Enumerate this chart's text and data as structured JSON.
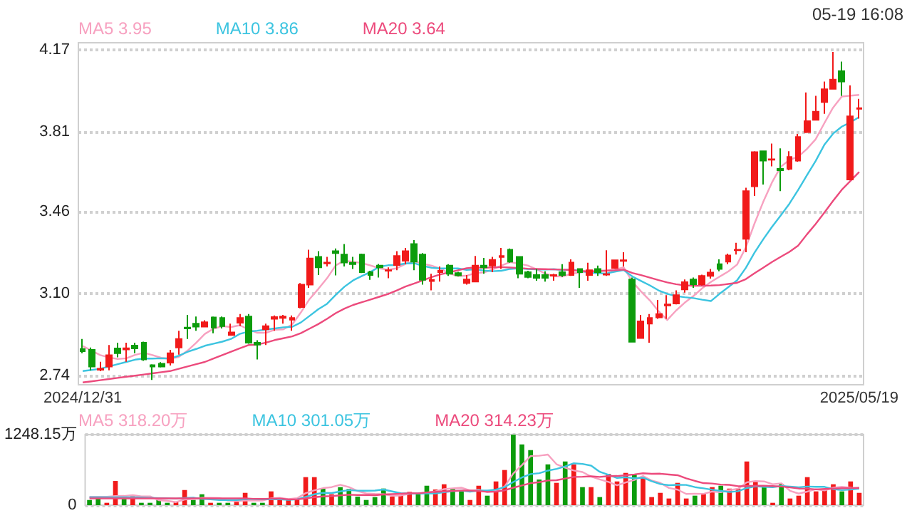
{
  "chart_data": [
    {
      "type": "candlestick",
      "annotations": [
        "05-19 16:08"
      ],
      "legend": "top left",
      "grid": "y",
      "ylim": [
        2.7,
        4.2
      ],
      "yticks": [
        4.17,
        3.81,
        3.46,
        {
          "value": 3.1,
          "label": "3.10"
        },
        2.74
      ],
      "categories": [
        "2024/12/31",
        null,
        null,
        null,
        null,
        null,
        null,
        null,
        null,
        null,
        null,
        null,
        null,
        null,
        null,
        null,
        null,
        null,
        null,
        null,
        null,
        null,
        null,
        null,
        null,
        null,
        null,
        null,
        null,
        null,
        null,
        null,
        null,
        null,
        null,
        null,
        null,
        null,
        null,
        null,
        null,
        null,
        null,
        null,
        null,
        null,
        null,
        null,
        null,
        null,
        null,
        null,
        null,
        null,
        null,
        null,
        null,
        null,
        null,
        null,
        null,
        null,
        null,
        null,
        null,
        null,
        null,
        null,
        null,
        null,
        null,
        null,
        null,
        null,
        null,
        null,
        null,
        null,
        null,
        null,
        null,
        null,
        null,
        null,
        null,
        null,
        null,
        null,
        null,
        "2025/05/19"
      ],
      "ohlc": [
        [
          2.857,
          2.901,
          2.838,
          2.847
        ],
        [
          2.853,
          2.863,
          2.763,
          2.78
        ],
        [
          2.766,
          2.801,
          2.759,
          2.77
        ],
        [
          2.78,
          2.874,
          2.763,
          2.83
        ],
        [
          2.859,
          2.884,
          2.82,
          2.838
        ],
        [
          2.855,
          2.884,
          2.801,
          2.86
        ],
        [
          2.872,
          2.884,
          2.838,
          2.859
        ],
        [
          2.884,
          2.889,
          2.805,
          2.811
        ],
        [
          2.786,
          2.79,
          2.721,
          2.78
        ],
        [
          2.792,
          2.799,
          2.776,
          2.78
        ],
        [
          2.797,
          2.853,
          2.784,
          2.838
        ],
        [
          2.863,
          2.937,
          2.832,
          2.901
        ],
        [
          2.951,
          3.006,
          2.901,
          2.947
        ],
        [
          2.968,
          2.999,
          2.937,
          2.955
        ],
        [
          2.955,
          2.983,
          2.953,
          2.974
        ],
        [
          2.995,
          2.999,
          2.926,
          2.951
        ],
        [
          2.993,
          2.999,
          2.947,
          2.957
        ],
        [
          2.918,
          2.968,
          2.916,
          2.93
        ],
        [
          2.972,
          3.01,
          2.957,
          2.993
        ],
        [
          2.999,
          3.01,
          2.88,
          2.884
        ],
        [
          2.884,
          2.895,
          2.811,
          2.876
        ],
        [
          2.943,
          2.968,
          2.874,
          2.957
        ],
        [
          2.989,
          3.004,
          2.937,
          2.997
        ],
        [
          2.993,
          3.006,
          2.968,
          2.999
        ],
        [
          2.985,
          3.004,
          2.937,
          2.993
        ],
        [
          3.041,
          3.146,
          3.035,
          3.139
        ],
        [
          3.139,
          3.292,
          3.125,
          3.254
        ],
        [
          3.261,
          3.286,
          3.181,
          3.215
        ],
        [
          3.232,
          3.261,
          3.219,
          3.236
        ],
        [
          3.286,
          3.298,
          3.18,
          3.277
        ],
        [
          3.271,
          3.317,
          3.219,
          3.236
        ],
        [
          3.235,
          3.261,
          3.208,
          3.229
        ],
        [
          3.271,
          3.275,
          3.19,
          3.194
        ],
        [
          3.194,
          3.2,
          3.16,
          3.181
        ],
        [
          3.223,
          3.23,
          3.17,
          3.215
        ],
        [
          3.2,
          3.215,
          3.167,
          3.202
        ],
        [
          3.225,
          3.286,
          3.202,
          3.265
        ],
        [
          3.244,
          3.3,
          3.229,
          3.286
        ],
        [
          3.317,
          3.334,
          3.202,
          3.24
        ],
        [
          3.271,
          3.277,
          3.139,
          3.16
        ],
        [
          3.155,
          3.187,
          3.114,
          3.16
        ],
        [
          3.194,
          3.219,
          3.152,
          3.2
        ],
        [
          3.223,
          3.229,
          3.177,
          3.187
        ],
        [
          3.19,
          3.195,
          3.175,
          3.18
        ],
        [
          3.146,
          3.181,
          3.139,
          3.162
        ],
        [
          3.152,
          3.265,
          3.152,
          3.223
        ],
        [
          3.223,
          3.256,
          3.187,
          3.215
        ],
        [
          3.223,
          3.261,
          3.194,
          3.248
        ],
        [
          3.26,
          3.3,
          3.208,
          3.265
        ],
        [
          3.292,
          3.298,
          3.235,
          3.24
        ],
        [
          3.261,
          3.261,
          3.167,
          3.187
        ],
        [
          3.194,
          3.2,
          3.167,
          3.173
        ],
        [
          3.181,
          3.208,
          3.156,
          3.169
        ],
        [
          3.181,
          3.198,
          3.152,
          3.169
        ],
        [
          3.178,
          3.187,
          3.156,
          3.181
        ],
        [
          3.194,
          3.229,
          3.173,
          3.181
        ],
        [
          3.181,
          3.25,
          3.177,
          3.236
        ],
        [
          3.208,
          3.208,
          3.125,
          3.194
        ],
        [
          3.181,
          3.235,
          3.156,
          3.202
        ],
        [
          3.208,
          3.223,
          3.177,
          3.194
        ],
        [
          3.183,
          3.29,
          3.177,
          3.185
        ],
        [
          3.212,
          3.246,
          3.208,
          3.246
        ],
        [
          3.243,
          3.281,
          3.219,
          3.246
        ],
        [
          3.162,
          3.17,
          2.888,
          2.888
        ],
        [
          2.905,
          3.006,
          2.905,
          2.978
        ],
        [
          2.968,
          3.01,
          2.884,
          2.993
        ],
        [
          2.995,
          3.072,
          2.989,
          3.01
        ],
        [
          3.048,
          3.093,
          2.989,
          3.052
        ],
        [
          3.056,
          3.114,
          3.052,
          3.093
        ],
        [
          3.118,
          3.162,
          3.104,
          3.15
        ],
        [
          3.162,
          3.17,
          3.125,
          3.141
        ],
        [
          3.141,
          3.183,
          3.135,
          3.177
        ],
        [
          3.177,
          3.208,
          3.166,
          3.192
        ],
        [
          3.229,
          3.25,
          3.198,
          3.208
        ],
        [
          3.24,
          3.275,
          3.229,
          3.267
        ],
        [
          3.29,
          3.323,
          3.271,
          3.292
        ],
        [
          3.34,
          3.564,
          3.281,
          3.549
        ],
        [
          3.57,
          3.724,
          3.528,
          3.72
        ],
        [
          3.724,
          3.724,
          3.578,
          3.683
        ],
        [
          3.687,
          3.758,
          3.658,
          3.689
        ],
        [
          3.647,
          3.737,
          3.549,
          3.641
        ],
        [
          3.647,
          3.724,
          3.641,
          3.699
        ],
        [
          3.683,
          3.8,
          3.678,
          3.787
        ],
        [
          3.808,
          3.982,
          3.804,
          3.856
        ],
        [
          3.862,
          3.967,
          3.862,
          3.898
        ],
        [
          3.94,
          4.03,
          3.888,
          3.996
        ],
        [
          3.998,
          4.159,
          3.998,
          4.038
        ],
        [
          4.076,
          4.117,
          3.967,
          4.03
        ],
        [
          3.6,
          4.013,
          3.6,
          3.877
        ],
        [
          3.91,
          3.954,
          3.867,
          3.913
        ]
      ],
      "colors": [
        "#0c9c0c",
        "#0c9c0c",
        "#f11a1a",
        "#f11a1a",
        "#0c9c0c",
        "#f11a1a",
        "#0c9c0c",
        "#0c9c0c",
        "#0c9c0c",
        "#0c9c0c",
        "#f11a1a",
        "#f11a1a",
        "#0c9c0c",
        "#0c9c0c",
        "#f11a1a",
        "#0c9c0c",
        "#0c9c0c",
        "#f11a1a",
        "#f11a1a",
        "#0c9c0c",
        "#0c9c0c",
        "#f11a1a",
        "#f11a1a",
        "#f11a1a",
        "#f11a1a",
        "#f11a1a",
        "#f11a1a",
        "#0c9c0c",
        "#f11a1a",
        "#0c9c0c",
        "#0c9c0c",
        "#0c9c0c",
        "#0c9c0c",
        "#0c9c0c",
        "#0c9c0c",
        "#f11a1a",
        "#f11a1a",
        "#f11a1a",
        "#0c9c0c",
        "#0c9c0c",
        "#f11a1a",
        "#f11a1a",
        "#0c9c0c",
        "#0c9c0c",
        "#f11a1a",
        "#f11a1a",
        "#0c9c0c",
        "#f11a1a",
        "#f11a1a",
        "#0c9c0c",
        "#0c9c0c",
        "#0c9c0c",
        "#0c9c0c",
        "#0c9c0c",
        "#f11a1a",
        "#0c9c0c",
        "#f11a1a",
        "#0c9c0c",
        "#f11a1a",
        "#0c9c0c",
        "#f11a1a",
        "#f11a1a",
        "#f11a1a",
        "#0c9c0c",
        "#f11a1a",
        "#f11a1a",
        "#f11a1a",
        "#f11a1a",
        "#f11a1a",
        "#f11a1a",
        "#0c9c0c",
        "#f11a1a",
        "#f11a1a",
        "#0c9c0c",
        "#f11a1a",
        "#f11a1a",
        "#f11a1a",
        "#f11a1a",
        "#0c9c0c",
        "#f11a1a",
        "#0c9c0c",
        "#f11a1a",
        "#f11a1a",
        "#f11a1a",
        "#f11a1a",
        "#f11a1a",
        "#f11a1a",
        "#0c9c0c",
        "#f11a1a",
        "#f11a1a"
      ],
      "series": [
        {
          "name": "MA5 3.95",
          "type": "line",
          "color": "#f7a1c0",
          "values": [
            2.87,
            2.85,
            2.83,
            2.82,
            2.813,
            2.816,
            2.831,
            2.84,
            2.83,
            2.818,
            2.814,
            2.822,
            2.849,
            2.884,
            2.923,
            2.946,
            2.957,
            2.953,
            2.961,
            2.943,
            2.928,
            2.928,
            2.941,
            2.943,
            2.964,
            3.017,
            3.076,
            3.12,
            3.167,
            3.224,
            3.244,
            3.239,
            3.234,
            3.223,
            3.211,
            3.204,
            3.211,
            3.23,
            3.242,
            3.231,
            3.222,
            3.209,
            3.189,
            3.177,
            3.178,
            3.19,
            3.193,
            3.206,
            3.223,
            3.238,
            3.231,
            3.223,
            3.207,
            3.188,
            3.176,
            3.175,
            3.187,
            3.192,
            3.199,
            3.201,
            3.202,
            3.204,
            3.215,
            3.152,
            3.109,
            3.07,
            3.023,
            2.984,
            3.025,
            3.06,
            3.089,
            3.123,
            3.151,
            3.174,
            3.197,
            3.227,
            3.302,
            3.407,
            3.502,
            3.587,
            3.656,
            3.686,
            3.7,
            3.734,
            3.776,
            3.847,
            3.915,
            3.964,
            3.968,
            3.971
          ]
        },
        {
          "name": "MA10 3.86",
          "type": "line",
          "color": "#3cc4e0",
          "values": [
            2.76,
            2.765,
            2.77,
            2.78,
            2.79,
            2.8,
            2.81,
            2.815,
            2.815,
            2.816,
            2.815,
            2.827,
            2.844,
            2.857,
            2.871,
            2.88,
            2.889,
            2.901,
            2.923,
            2.933,
            2.937,
            2.942,
            2.947,
            2.952,
            2.954,
            2.973,
            3.002,
            3.031,
            3.055,
            3.094,
            3.13,
            3.158,
            3.177,
            3.195,
            3.218,
            3.224,
            3.225,
            3.232,
            3.233,
            3.221,
            3.213,
            3.21,
            3.21,
            3.21,
            3.204,
            3.206,
            3.201,
            3.198,
            3.2,
            3.208,
            3.211,
            3.208,
            3.206,
            3.205,
            3.207,
            3.203,
            3.205,
            3.2,
            3.193,
            3.189,
            3.188,
            3.196,
            3.203,
            3.175,
            3.155,
            3.136,
            3.114,
            3.099,
            3.089,
            3.084,
            3.08,
            3.073,
            3.067,
            3.099,
            3.128,
            3.158,
            3.212,
            3.279,
            3.338,
            3.392,
            3.442,
            3.494,
            3.554,
            3.618,
            3.681,
            3.752,
            3.801,
            3.832,
            3.851,
            3.874
          ]
        },
        {
          "name": "MA20 3.64",
          "type": "line",
          "color": "#ec4a7c",
          "values": [
            2.71,
            2.715,
            2.72,
            2.725,
            2.73,
            2.735,
            2.74,
            2.745,
            2.75,
            2.755,
            2.76,
            2.77,
            2.78,
            2.79,
            2.8,
            2.815,
            2.83,
            2.845,
            2.86,
            2.874,
            2.876,
            2.885,
            2.896,
            2.904,
            2.912,
            2.926,
            2.946,
            2.966,
            2.989,
            3.014,
            3.034,
            3.05,
            3.062,
            3.074,
            3.086,
            3.098,
            3.114,
            3.131,
            3.144,
            3.158,
            3.172,
            3.184,
            3.193,
            3.202,
            3.211,
            3.215,
            3.213,
            3.215,
            3.216,
            3.214,
            3.212,
            3.209,
            3.208,
            3.207,
            3.206,
            3.205,
            3.203,
            3.199,
            3.197,
            3.198,
            3.2,
            3.202,
            3.205,
            3.19,
            3.181,
            3.17,
            3.159,
            3.149,
            3.141,
            3.136,
            3.134,
            3.134,
            3.135,
            3.137,
            3.142,
            3.147,
            3.163,
            3.189,
            3.213,
            3.238,
            3.261,
            3.283,
            3.31,
            3.359,
            3.405,
            3.455,
            3.506,
            3.555,
            3.594,
            3.633
          ]
        }
      ]
    },
    {
      "type": "bar",
      "legend": "top left",
      "grid": "y",
      "tick_labels": "y",
      "ylim": [
        0,
        1248.15
      ],
      "yticks": [
        {
          "value": 1248.15,
          "label": "1248.15万"
        },
        0
      ],
      "categories": [
        null,
        null,
        null,
        null,
        null,
        null,
        null,
        null,
        null,
        null,
        null,
        null,
        null,
        null,
        null,
        null,
        null,
        null,
        null,
        null,
        null,
        null,
        null,
        null,
        null,
        null,
        null,
        null,
        null,
        null,
        null,
        null,
        null,
        null,
        null,
        null,
        null,
        null,
        null,
        null,
        null,
        null,
        null,
        null,
        null,
        null,
        null,
        null,
        null,
        null,
        null,
        null,
        null,
        null,
        null,
        null,
        null,
        null,
        null,
        null,
        null,
        null,
        null,
        null,
        null,
        null,
        null,
        null,
        null,
        null,
        null,
        null,
        null,
        null,
        null,
        null,
        null,
        null,
        null,
        null,
        null,
        null,
        null,
        null,
        null,
        null,
        null,
        null,
        null,
        null
      ],
      "series": [
        {
          "values": [
            92,
            143,
            42,
            428,
            109,
            160,
            42,
            42,
            92,
            42,
            50,
            269,
            92,
            193,
            42,
            42,
            42,
            59,
            218,
            42,
            42,
            244,
            109,
            109,
            109,
            496,
            496,
            302,
            193,
            319,
            286,
            151,
            92,
            143,
            294,
            151,
            176,
            235,
            193,
            344,
            277,
            370,
            294,
            260,
            92,
            344,
            168,
            420,
            622,
            1248.15,
            1075,
            974,
            454,
            722,
            395,
            773,
            722,
            319,
            319,
            143,
            554,
            420,
            571,
            546,
            496,
            143,
            218,
            118,
            395,
            118,
            168,
            202,
            319,
            344,
            294,
            294,
            773,
            420,
            319,
            42,
            378,
            118,
            168,
            496,
            244,
            277,
            370,
            244,
            420,
            218
          ],
          "colors": [
            "#0c9c0c",
            "#0c9c0c",
            "#f11a1a",
            "#f11a1a",
            "#0c9c0c",
            "#f11a1a",
            "#0c9c0c",
            "#0c9c0c",
            "#0c9c0c",
            "#0c9c0c",
            "#f11a1a",
            "#f11a1a",
            "#0c9c0c",
            "#0c9c0c",
            "#f11a1a",
            "#0c9c0c",
            "#0c9c0c",
            "#f11a1a",
            "#f11a1a",
            "#0c9c0c",
            "#0c9c0c",
            "#f11a1a",
            "#f11a1a",
            "#f11a1a",
            "#f11a1a",
            "#f11a1a",
            "#f11a1a",
            "#0c9c0c",
            "#f11a1a",
            "#0c9c0c",
            "#0c9c0c",
            "#0c9c0c",
            "#0c9c0c",
            "#0c9c0c",
            "#0c9c0c",
            "#f11a1a",
            "#f11a1a",
            "#f11a1a",
            "#0c9c0c",
            "#0c9c0c",
            "#f11a1a",
            "#f11a1a",
            "#0c9c0c",
            "#0c9c0c",
            "#f11a1a",
            "#f11a1a",
            "#0c9c0c",
            "#f11a1a",
            "#f11a1a",
            "#0c9c0c",
            "#0c9c0c",
            "#0c9c0c",
            "#0c9c0c",
            "#0c9c0c",
            "#f11a1a",
            "#0c9c0c",
            "#f11a1a",
            "#0c9c0c",
            "#f11a1a",
            "#0c9c0c",
            "#f11a1a",
            "#f11a1a",
            "#f11a1a",
            "#0c9c0c",
            "#f11a1a",
            "#f11a1a",
            "#f11a1a",
            "#f11a1a",
            "#f11a1a",
            "#f11a1a",
            "#0c9c0c",
            "#f11a1a",
            "#f11a1a",
            "#0c9c0c",
            "#f11a1a",
            "#f11a1a",
            "#f11a1a",
            "#f11a1a",
            "#0c9c0c",
            "#f11a1a",
            "#0c9c0c",
            "#f11a1a",
            "#f11a1a",
            "#f11a1a",
            "#f11a1a",
            "#f11a1a",
            "#f11a1a",
            "#0c9c0c",
            "#f11a1a",
            "#f11a1a"
          ]
        },
        {
          "name": "MA5 318.20万",
          "type": "line",
          "color": "#f7a1c0",
          "values": [
            150,
            150,
            150,
            160,
            163,
            176,
            156,
            156,
            89,
            76,
            54,
            99,
            109,
            129,
            129,
            128,
            82,
            76,
            81,
            81,
            81,
            121,
            131,
            109,
            123,
            213,
            264,
            302,
            319,
            361,
            319,
            250,
            208,
            198,
            193,
            166,
            171,
            200,
            210,
            220,
            245,
            284,
            296,
            309,
            259,
            272,
            232,
            257,
            329,
            560,
            707,
            868,
            875,
            895,
            724,
            664,
            613,
            586,
            506,
            455,
            411,
            351,
            401,
            447,
            517,
            435,
            395,
            304,
            274,
            198,
            203,
            200,
            240,
            230,
            265,
            291,
            405,
            425,
            420,
            370,
            386,
            255,
            205,
            240,
            281,
            261,
            311,
            326,
            311,
            306
          ]
        },
        {
          "name": "MA10 301.05万",
          "type": "line",
          "color": "#3cc4e0",
          "values": [
            140,
            140,
            140,
            140,
            140,
            140,
            135,
            130,
            125,
            119,
            115,
            128,
            133,
            109,
            102,
            91,
            91,
            92,
            105,
            105,
            104,
            102,
            103,
            95,
            102,
            147,
            192,
            217,
            214,
            242,
            266,
            257,
            255,
            259,
            277,
            243,
            211,
            204,
            204,
            207,
            206,
            228,
            248,
            259,
            239,
            259,
            258,
            276,
            319,
            410,
            489,
            550,
            566,
            612,
            642,
            685,
            741,
            730,
            700,
            590,
            538,
            482,
            494,
            476,
            486,
            423,
            373,
            353,
            360,
            358,
            319,
            298,
            272,
            252,
            232,
            247,
            303,
            333,
            325,
            318,
            339,
            330,
            315,
            330,
            325,
            324,
            283,
            266,
            276,
            293
          ]
        },
        {
          "name": "MA20 314.23万",
          "type": "line",
          "color": "#ec4a7c",
          "values": [
            120,
            120,
            120,
            120,
            120,
            120,
            120,
            120,
            120,
            120,
            120,
            120,
            120,
            120,
            120,
            120,
            120,
            120,
            120,
            112,
            110,
            115,
            118,
            102,
            102,
            119,
            142,
            155,
            160,
            174,
            185,
            180,
            179,
            177,
            190,
            195,
            202,
            211,
            209,
            225,
            236,
            243,
            252,
            259,
            258,
            251,
            235,
            240,
            262,
            309,
            348,
            389,
            407,
            436,
            441,
            472,
            500,
            503,
            510,
            500,
            514,
            516,
            530,
            544,
            564,
            554,
            557,
            542,
            530,
            474,
            429,
            390,
            383,
            364,
            359,
            335,
            338,
            343,
            343,
            338,
            329,
            314,
            294,
            291,
            279,
            286,
            293,
            300,
            301,
            306
          ]
        }
      ]
    }
  ]
}
